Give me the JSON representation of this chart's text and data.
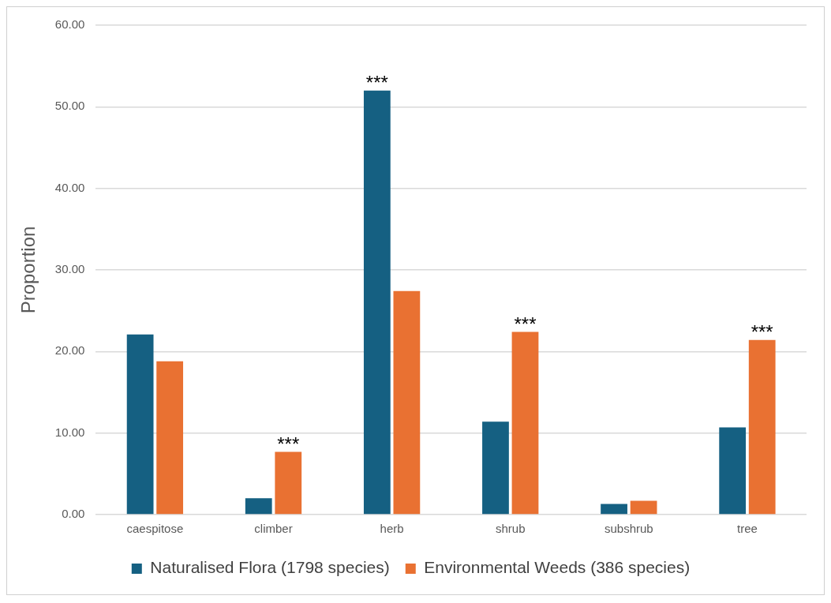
{
  "chart_data": {
    "type": "bar",
    "ylabel": "Proportion",
    "categories": [
      "caespitose",
      "climber",
      "herb",
      "shrub",
      "subshrub",
      "tree"
    ],
    "series": [
      {
        "name": "Naturalised Flora (1798 species)",
        "color": "#156082",
        "values": [
          22.1,
          2.0,
          52.0,
          11.4,
          1.3,
          10.7
        ]
      },
      {
        "name": "Environmental Weeds (386 species)",
        "color": "#e97132",
        "values": [
          18.8,
          7.7,
          27.4,
          22.4,
          1.7,
          21.4
        ]
      }
    ],
    "ylim": [
      0,
      60
    ],
    "yticks": [
      {
        "value": 0,
        "label": "0.00"
      },
      {
        "value": 10,
        "label": "10.00"
      },
      {
        "value": 20,
        "label": "20.00"
      },
      {
        "value": 30,
        "label": "30.00"
      },
      {
        "value": 40,
        "label": "40.00"
      },
      {
        "value": 50,
        "label": "50.00"
      },
      {
        "value": 60,
        "label": "60.00"
      }
    ],
    "grid": "y",
    "legend": "bottom",
    "annotations": [
      {
        "text": "***",
        "x": "climber",
        "y": 7.7
      },
      {
        "text": "***",
        "x": "herb",
        "y": 52.0
      },
      {
        "text": "***",
        "x": "shrub",
        "y": 22.4
      },
      {
        "text": "***",
        "x": "tree",
        "y": 21.4
      }
    ]
  }
}
